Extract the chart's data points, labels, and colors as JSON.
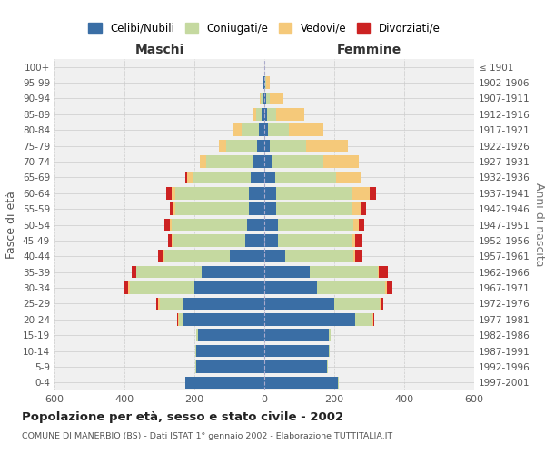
{
  "age_groups": [
    "0-4",
    "5-9",
    "10-14",
    "15-19",
    "20-24",
    "25-29",
    "30-34",
    "35-39",
    "40-44",
    "45-49",
    "50-54",
    "55-59",
    "60-64",
    "65-69",
    "70-74",
    "75-79",
    "80-84",
    "85-89",
    "90-94",
    "95-99",
    "100+"
  ],
  "birth_years": [
    "1997-2001",
    "1992-1996",
    "1987-1991",
    "1982-1986",
    "1977-1981",
    "1972-1976",
    "1967-1971",
    "1962-1966",
    "1957-1961",
    "1952-1956",
    "1947-1951",
    "1942-1946",
    "1937-1941",
    "1932-1936",
    "1927-1931",
    "1922-1926",
    "1917-1921",
    "1912-1916",
    "1907-1911",
    "1902-1906",
    "≤ 1901"
  ],
  "maschi": {
    "celibi": [
      225,
      195,
      195,
      190,
      230,
      230,
      200,
      180,
      100,
      55,
      50,
      45,
      45,
      40,
      35,
      20,
      15,
      8,
      5,
      2,
      1
    ],
    "coniugati": [
      2,
      2,
      2,
      5,
      15,
      70,
      185,
      185,
      185,
      205,
      215,
      210,
      210,
      165,
      130,
      90,
      50,
      15,
      5,
      0,
      0
    ],
    "vedovi": [
      0,
      0,
      0,
      0,
      2,
      5,
      5,
      0,
      5,
      5,
      5,
      5,
      10,
      15,
      20,
      20,
      25,
      8,
      3,
      0,
      0
    ],
    "divorziati": [
      0,
      0,
      0,
      0,
      2,
      5,
      10,
      15,
      15,
      10,
      15,
      10,
      15,
      5,
      0,
      0,
      0,
      0,
      0,
      0,
      0
    ]
  },
  "femmine": {
    "nubili": [
      210,
      180,
      185,
      185,
      260,
      200,
      150,
      130,
      60,
      40,
      40,
      35,
      35,
      30,
      20,
      15,
      10,
      8,
      5,
      3,
      1
    ],
    "coniugate": [
      2,
      2,
      2,
      5,
      50,
      130,
      195,
      195,
      195,
      210,
      215,
      215,
      215,
      175,
      150,
      105,
      60,
      25,
      10,
      2,
      0
    ],
    "vedove": [
      0,
      0,
      0,
      0,
      2,
      5,
      5,
      2,
      5,
      10,
      15,
      25,
      50,
      70,
      100,
      120,
      100,
      80,
      40,
      10,
      0
    ],
    "divorziate": [
      0,
      0,
      0,
      0,
      2,
      5,
      15,
      25,
      20,
      20,
      15,
      15,
      20,
      0,
      0,
      0,
      0,
      0,
      0,
      0,
      0
    ]
  },
  "colors": {
    "celibi": "#3a6ea5",
    "coniugati": "#c5d9a0",
    "vedovi": "#f5c97a",
    "divorziati": "#cc2222"
  },
  "legend_labels": [
    "Celibi/Nubili",
    "Coniugati/e",
    "Vedovi/e",
    "Divorziati/e"
  ],
  "title": "Popolazione per età, sesso e stato civile - 2002",
  "subtitle": "COMUNE DI MANERBIO (BS) - Dati ISTAT 1° gennaio 2002 - Elaborazione TUTTITALIA.IT",
  "xlabel_left": "Maschi",
  "xlabel_right": "Femmine",
  "ylabel_left": "Fasce di età",
  "ylabel_right": "Anni di nascita",
  "xlim": 600,
  "bg_color": "#f0f0f0",
  "plot_bg": "#ffffff"
}
